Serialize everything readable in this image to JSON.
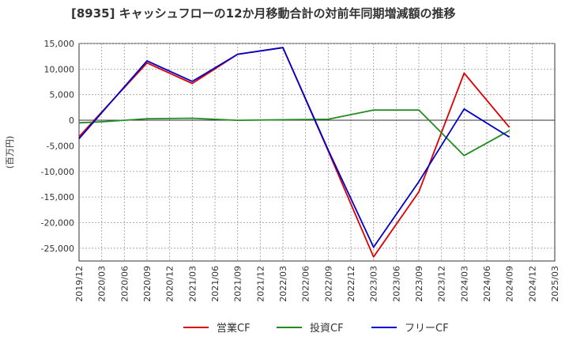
{
  "chart_data": {
    "type": "line",
    "title": "[8935]  キャッシュフローの12か月移動合計の対前年同期増減額の推移",
    "ylabel": "(百万円)",
    "xlabel": "",
    "ylim": [
      -27500,
      15000
    ],
    "yticks": [
      15000,
      10000,
      5000,
      0,
      -5000,
      -10000,
      -15000,
      -20000,
      -25000
    ],
    "ytick_labels": [
      "15,000",
      "10,000",
      "5,000",
      "0",
      "-5,000",
      "-10,000",
      "-15,000",
      "-20,000",
      "-25,000"
    ],
    "categories": [
      "2019/12",
      "2020/03",
      "2020/06",
      "2020/09",
      "2020/12",
      "2021/03",
      "2021/06",
      "2021/09",
      "2021/12",
      "2022/03",
      "2022/06",
      "2022/09",
      "2022/12",
      "2023/03",
      "2023/06",
      "2023/09",
      "2023/12",
      "2024/03",
      "2024/06",
      "2024/09",
      "2024/12",
      "2025/03"
    ],
    "grid": true,
    "legend_position": "bottom",
    "series": [
      {
        "name": "営業CF",
        "color": "#dd0000",
        "values": [
          -3200,
          null,
          null,
          11200,
          null,
          7200,
          null,
          12900,
          null,
          14200,
          null,
          -6000,
          null,
          -26700,
          null,
          -14000,
          null,
          9200,
          null,
          -1400,
          null,
          null
        ]
      },
      {
        "name": "投資CF",
        "color": "#228b22",
        "values": [
          -500,
          -300,
          null,
          300,
          null,
          400,
          null,
          0,
          null,
          100,
          null,
          200,
          null,
          2000,
          null,
          2000,
          null,
          -6900,
          null,
          -2000,
          null,
          null
        ]
      },
      {
        "name": "フリーCF",
        "color": "#0000cc",
        "values": [
          -3600,
          null,
          null,
          11600,
          null,
          7600,
          null,
          12900,
          null,
          14200,
          null,
          -5800,
          null,
          -24800,
          null,
          -12000,
          null,
          2200,
          null,
          -3300,
          null,
          null
        ]
      }
    ]
  }
}
